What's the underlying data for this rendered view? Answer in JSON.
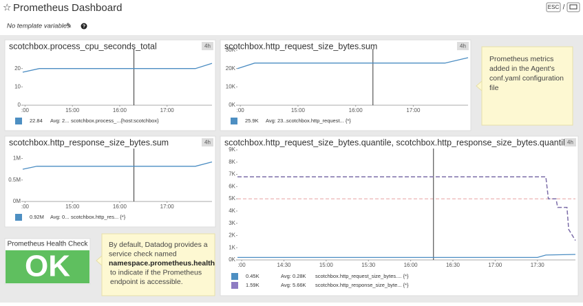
{
  "header": {
    "title": "Prometheus Dashboard",
    "template_text": "No template variables",
    "esc": "ESC",
    "slash": "/"
  },
  "widgets": [
    {
      "title": "scotchbox.process_cpu_seconds_total",
      "badge": "4h",
      "xlim": [
        13.95,
        17.95
      ],
      "xticks": [
        {
          "value": 14,
          "label": ":00"
        },
        {
          "value": 15,
          "label": "15:00"
        },
        {
          "value": 16,
          "label": "16:00"
        },
        {
          "value": 17,
          "label": "17:00"
        }
      ],
      "ylim": [
        0,
        30
      ],
      "yticks": [
        0,
        10,
        20
      ],
      "cursor_x": 16.3,
      "series": [
        {
          "name": "scotchbox.process_...{host:scotchbox}",
          "last_label": "22.84",
          "avg_label": "Avg: 2...",
          "color": "#4a8cc2",
          "swatch": "#4d8fc2",
          "x": [
            13.95,
            14.3,
            17.6,
            17.95
          ],
          "values": [
            18,
            20,
            20,
            22.84
          ]
        }
      ]
    },
    {
      "title": "scotchbox.http_request_size_bytes.sum",
      "badge": "4h",
      "xlim": [
        13.95,
        17.95
      ],
      "xticks": [
        {
          "value": 14,
          "label": ":00"
        },
        {
          "value": 15,
          "label": "15:00"
        },
        {
          "value": 16,
          "label": "16:00"
        },
        {
          "value": 17,
          "label": "17:00"
        }
      ],
      "ylim": [
        0,
        30000
      ],
      "yticks": [
        {
          "value": 0,
          "label": "0K"
        },
        {
          "value": 10000,
          "label": "10K"
        },
        {
          "value": 20000,
          "label": "20K"
        },
        {
          "value": 30000,
          "label": "30K"
        }
      ],
      "cursor_x": 16.3,
      "series": [
        {
          "name": "scotchbox.http_request... {*}",
          "last_label": "25.9K",
          "avg_label": "Avg: 23...",
          "color": "#4a8cc2",
          "swatch": "#4d8fc2",
          "x": [
            13.95,
            14.25,
            17.55,
            17.95
          ],
          "values": [
            20000,
            23000,
            23000,
            25900
          ]
        }
      ]
    },
    {
      "title": "scotchbox.http_response_size_bytes.sum",
      "badge": "4h",
      "xlim": [
        13.95,
        17.95
      ],
      "xticks": [
        {
          "value": 14,
          "label": ":00"
        },
        {
          "value": 15,
          "label": "15:00"
        },
        {
          "value": 16,
          "label": "16:00"
        },
        {
          "value": 17,
          "label": "17:00"
        }
      ],
      "ylim": [
        0,
        1200000
      ],
      "yticks": [
        {
          "value": 0,
          "label": "0M"
        },
        {
          "value": 500000,
          "label": "0.5M"
        },
        {
          "value": 1000000,
          "label": "1M"
        }
      ],
      "cursor_x": 16.3,
      "series": [
        {
          "name": "scotchbox.http_res... {*}",
          "last_label": "0.92M",
          "avg_label": "Avg: 0...",
          "color": "#4a8cc2",
          "swatch": "#4d8fc2",
          "x": [
            13.95,
            14.25,
            17.6,
            17.95
          ],
          "values": [
            750000,
            820000,
            820000,
            920000
          ]
        }
      ]
    },
    {
      "title": "scotchbox.http_request_size_bytes.quantile, scotchbox.http_response_size_bytes.quantile",
      "badge": "4h",
      "xlim": [
        13.95,
        17.95
      ],
      "xticks": [
        {
          "value": 14,
          "label": ":00"
        },
        {
          "value": 14.5,
          "label": "14:30"
        },
        {
          "value": 15,
          "label": "15:00"
        },
        {
          "value": 15.5,
          "label": "15:30"
        },
        {
          "value": 16,
          "label": "16:00"
        },
        {
          "value": 16.5,
          "label": "16:30"
        },
        {
          "value": 17,
          "label": "17:00"
        },
        {
          "value": 17.5,
          "label": "17:30"
        }
      ],
      "ylim": [
        0,
        9000
      ],
      "yticks": [
        {
          "value": 0,
          "label": "0K"
        },
        {
          "value": 1000,
          "label": "1K"
        },
        {
          "value": 2000,
          "label": "2K"
        },
        {
          "value": 3000,
          "label": "3K"
        },
        {
          "value": 4000,
          "label": "4K"
        },
        {
          "value": 5000,
          "label": "5K"
        },
        {
          "value": 6000,
          "label": "6K"
        },
        {
          "value": 7000,
          "label": "7K"
        },
        {
          "value": 8000,
          "label": "8K"
        },
        {
          "value": 9000,
          "label": "9K"
        }
      ],
      "cursor_x": 16.27,
      "markers": [
        {
          "value": 5000,
          "color": "#e8a0a0"
        }
      ],
      "series": [
        {
          "name": "scotchbox.http_request_size_bytes.... {*}",
          "last_label": "0.45K",
          "avg_label": "Avg: 0.28K",
          "color": "#4a8cc2",
          "swatch": "#4d8fc2",
          "x": [
            13.95,
            17.5,
            17.6,
            17.95
          ],
          "values": [
            200,
            200,
            400,
            450
          ]
        },
        {
          "name": "scotchbox.http_response_size_byte... {*}",
          "last_label": "1.59K",
          "avg_label": "Avg: 5.66K",
          "color": "#7b6ca8",
          "swatch": "#8e7cc3",
          "dashed": true,
          "x": [
            13.95,
            17.6,
            17.63,
            17.72,
            17.74,
            17.85,
            17.87,
            17.95
          ],
          "values": [
            6800,
            6800,
            5000,
            5000,
            4300,
            4300,
            2500,
            1590
          ]
        }
      ]
    }
  ],
  "health": {
    "title": "Prometheus Health Check",
    "status": "OK"
  },
  "notes": [
    {
      "lines": [
        "Prometheus metrics",
        "added in the Agent's",
        "conf.yaml configuration",
        "file"
      ]
    },
    {
      "lines": [
        "By default, Datadog provides a",
        "service check named"
      ],
      "bold": "namespace.prometheus.health",
      "lines_after": [
        "to indicate if the Prometheus",
        "endpoint is accessible."
      ]
    }
  ]
}
